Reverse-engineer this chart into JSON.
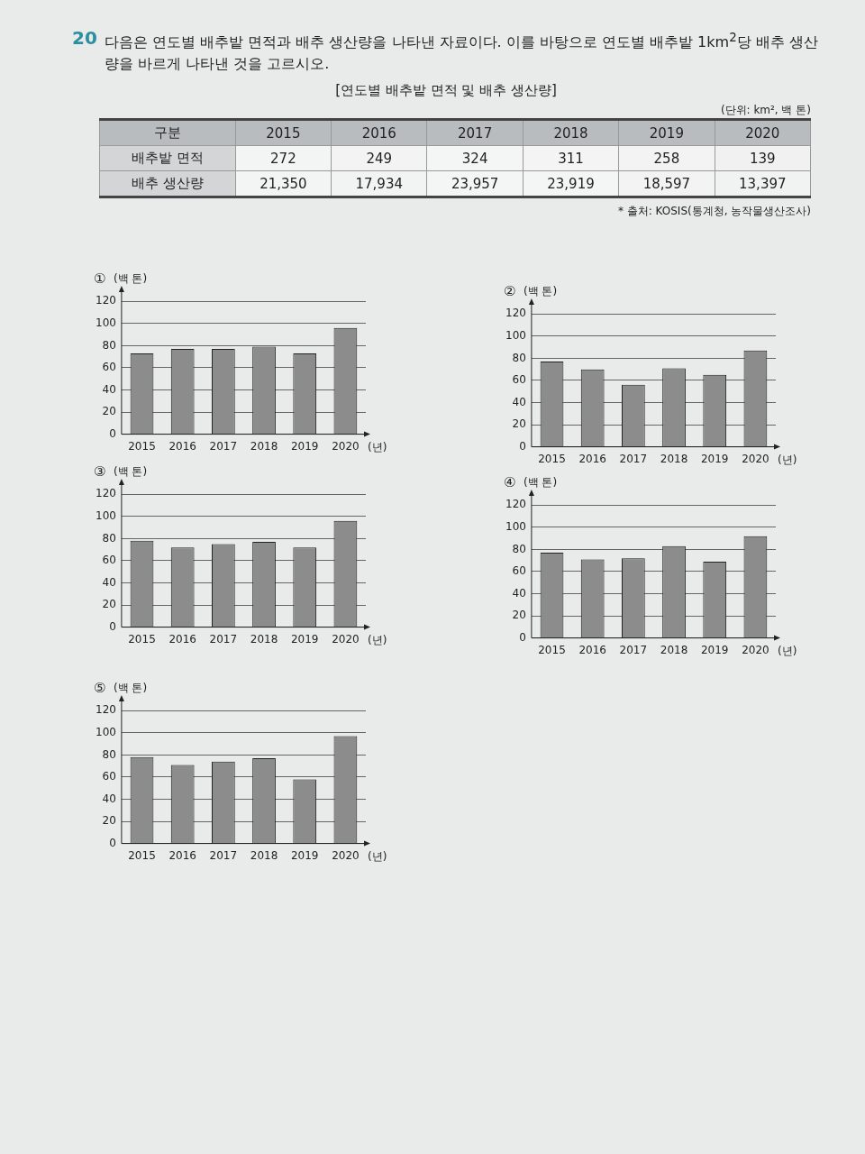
{
  "chart_data": [
    {
      "type": "heatmap",
      "title": "다음은 연도별 배추밭 면적과 배추 생산량을 나타낸 자료이다. 이를 바탕으로 연도별 배추밭 1km$^{2}$당 배추 생산량을 바르게 나타낸 것을 고르시오.",
      "subtitle": "[연도별 배추밭 면적 및 배추 생산량]",
      "ylabel": "구분",
      "categories": [
        "2015",
        "2016",
        "2017",
        "2018",
        "2019",
        "2020"
      ],
      "y_categories": [
        "배추밭 면적",
        "배추 생산량"
      ],
      "cells": [
        [
          272,
          249,
          324,
          311,
          258,
          139
        ],
        [
          21350,
          17934,
          23957,
          23919,
          18597,
          13397
        ]
      ],
      "cell_labels": [
        [
          "272",
          "249",
          "324",
          "311",
          "258",
          "139"
        ],
        [
          "21,350",
          "17,934",
          "23,957",
          "23,919",
          "18,597",
          "13,397"
        ]
      ],
      "annotations": [
        "20",
        "(단위: km², 백 톤)",
        "* 출처: KOSIS(통계청, 농작물생산조사)"
      ]
    },
    {
      "type": "bar",
      "title": "①",
      "ylabel": "(백 톤)",
      "xlabel": "(년)",
      "categories": [
        "2015",
        "2016",
        "2017",
        "2018",
        "2019",
        "2020"
      ],
      "values": [
        73,
        77,
        77,
        79,
        73,
        96
      ],
      "color": "#8c8c8c",
      "ylim": [
        0,
        130
      ],
      "yticks": [
        0,
        20,
        40,
        60,
        80,
        100,
        120
      ],
      "grid": "y",
      "legend": false
    },
    {
      "type": "bar",
      "title": "②",
      "ylabel": "(백 톤)",
      "xlabel": "(년)",
      "categories": [
        "2015",
        "2016",
        "2017",
        "2018",
        "2019",
        "2020"
      ],
      "values": [
        77,
        70,
        56,
        71,
        65,
        87
      ],
      "color": "#8c8c8c",
      "ylim": [
        0,
        130
      ],
      "yticks": [
        0,
        20,
        40,
        60,
        80,
        100,
        120
      ],
      "grid": "y",
      "legend": false
    },
    {
      "type": "bar",
      "title": "③",
      "ylabel": "(백 톤)",
      "xlabel": "(년)",
      "categories": [
        "2015",
        "2016",
        "2017",
        "2018",
        "2019",
        "2020"
      ],
      "values": [
        78,
        72,
        75,
        77,
        72,
        96
      ],
      "color": "#8c8c8c",
      "ylim": [
        0,
        130
      ],
      "yticks": [
        0,
        20,
        40,
        60,
        80,
        100,
        120
      ],
      "grid": "y",
      "legend": false
    },
    {
      "type": "bar",
      "title": "④",
      "ylabel": "(백 톤)",
      "xlabel": "(년)",
      "categories": [
        "2015",
        "2016",
        "2017",
        "2018",
        "2019",
        "2020"
      ],
      "values": [
        77,
        71,
        72,
        83,
        69,
        92
      ],
      "color": "#8c8c8c",
      "ylim": [
        0,
        130
      ],
      "yticks": [
        0,
        20,
        40,
        60,
        80,
        100,
        120
      ],
      "grid": "y",
      "legend": false
    },
    {
      "type": "bar",
      "title": "⑤",
      "ylabel": "(백 톤)",
      "xlabel": "(년)",
      "categories": [
        "2015",
        "2016",
        "2017",
        "2018",
        "2019",
        "2020"
      ],
      "values": [
        78,
        71,
        74,
        77,
        58,
        97
      ],
      "color": "#8c8c8c",
      "ylim": [
        0,
        130
      ],
      "yticks": [
        0,
        20,
        40,
        60,
        80,
        100,
        120
      ],
      "grid": "y",
      "legend": false
    }
  ]
}
